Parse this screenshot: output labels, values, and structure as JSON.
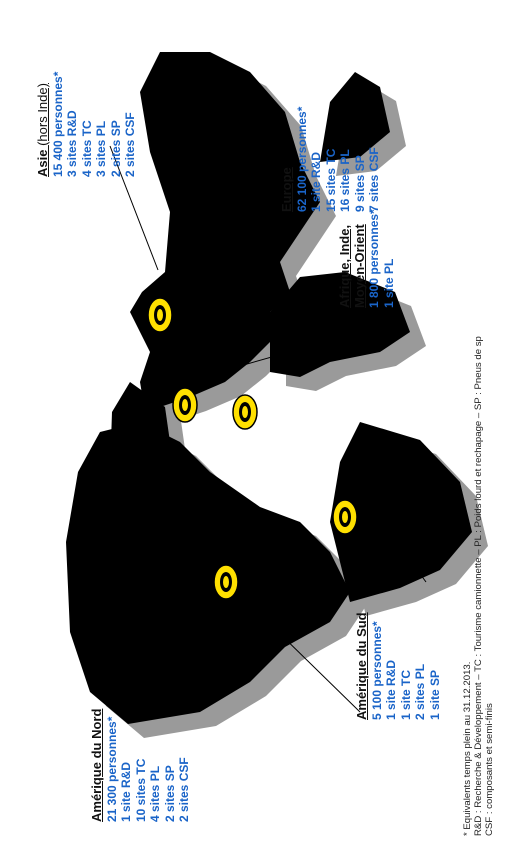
{
  "regions": [
    {
      "title": "Amérique du Nord",
      "lines": [
        "21 300 personnes*",
        "1 site R&D",
        "10 sites TC",
        "4 sites PL",
        "2 sites SP",
        "2 sites CSF"
      ]
    },
    {
      "title": "Amérique du Sud",
      "lines": [
        "5 100 personnes*",
        "1 site R&D",
        "1 site TC",
        "2 sites PL",
        "1 site SP"
      ]
    },
    {
      "title": "Afrique, Inde,",
      "title2": "Moyen-Orient",
      "lines": [
        "1 800 personnes*",
        "1 site PL"
      ]
    },
    {
      "title": "Europe",
      "lines": [
        "62 100 personnes*",
        "1 site R&D",
        "15 sites TC",
        "16 sites PL",
        "9 sites SP",
        "7 sites CSF"
      ]
    },
    {
      "title": "Asie",
      "title_suffix": "(hors Inde)",
      "lines": [
        "15 400 personnes*",
        "3 sites R&D",
        "4 sites TC",
        "3 sites PL",
        "2 sites SP",
        "2 sites CSF"
      ]
    }
  ],
  "footnotes": [
    "* Equivalents temps plein au 31.12.2013.",
    "R&D : Recherche & Développement – TC : Tourisme camionnette – PL : Poids lourd et rechapage – SP : Pneus de sp",
    "CSF : composants et semi-finis"
  ],
  "colors": {
    "map": "#000000",
    "shadow": "#9a9a9a",
    "logo": "#ffe000",
    "text_blue": "#1a64c8"
  }
}
